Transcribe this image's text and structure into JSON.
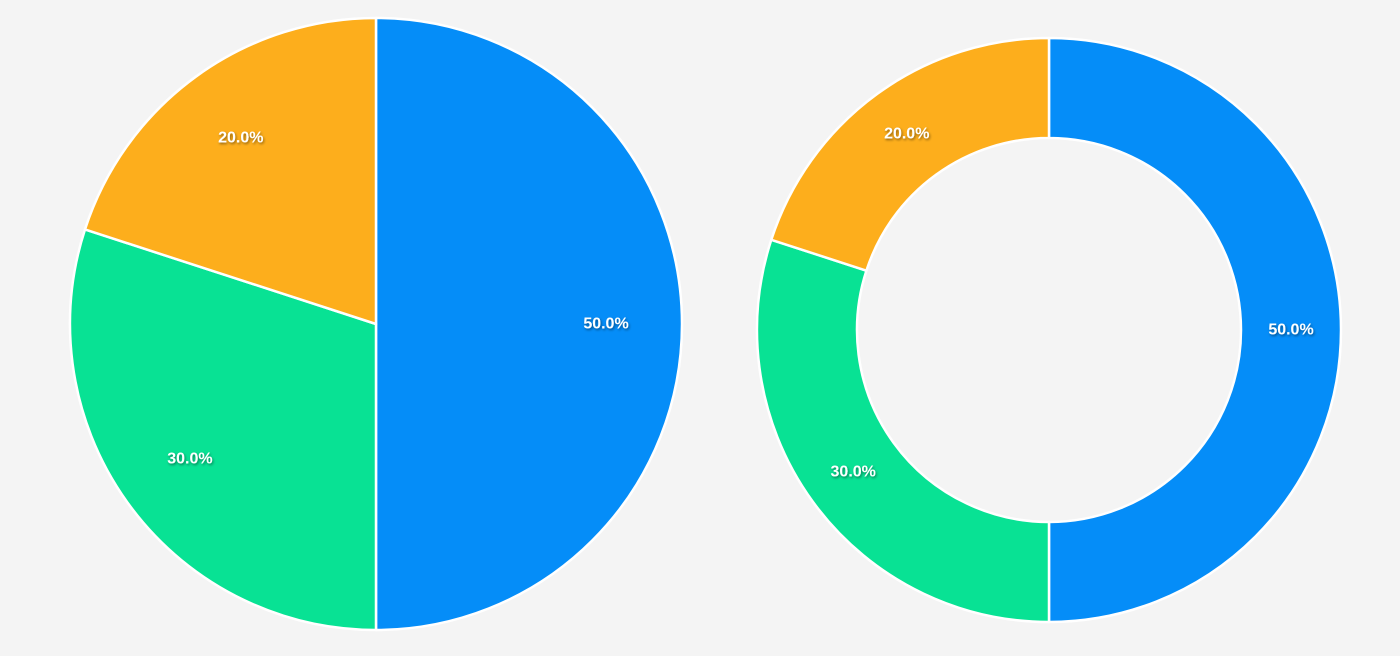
{
  "background": "#f4f4f4",
  "slice_stroke": "#ffffff",
  "chart_data": [
    {
      "type": "pie",
      "title": "",
      "categories": [
        "",
        "",
        ""
      ],
      "values": [
        50.0,
        30.0,
        20.0
      ],
      "labels": [
        "50.0%",
        "30.0%",
        "20.0%"
      ],
      "colors": [
        "#058df8",
        "#08e294",
        "#fdae1c"
      ]
    },
    {
      "type": "pie",
      "variant": "donut",
      "title": "",
      "categories": [
        "",
        "",
        ""
      ],
      "values": [
        50.0,
        30.0,
        20.0
      ],
      "labels": [
        "50.0%",
        "30.0%",
        "20.0%"
      ],
      "colors": [
        "#058df8",
        "#08e294",
        "#fdae1c"
      ]
    }
  ]
}
